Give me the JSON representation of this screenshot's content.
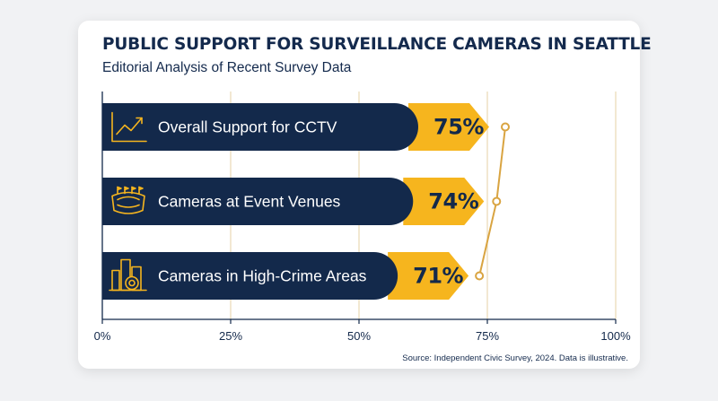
{
  "title": "PUBLIC SUPPORT FOR SURVEILLANCE CAMERAS IN SEATTLE",
  "subtitle": "Editorial Analysis of Recent Survey Data",
  "source": "Source: Independent Civic Survey, 2024. Data is illustrative.",
  "colors": {
    "bar": "#13294b",
    "accent": "#f6b51e",
    "trend_line": "#d9a441",
    "grid": "#ead9b4",
    "text_light": "#ffffff",
    "text_dark": "#13294b"
  },
  "chart_data": {
    "type": "bar",
    "orientation": "horizontal",
    "categories": [
      "Overall Support for CCTV",
      "Cameras at Event Venues",
      "Cameras in High-Crime Areas"
    ],
    "icons": [
      "trend-chart-icon",
      "stadium-icon",
      "city-camera-icon"
    ],
    "values": [
      75,
      74,
      71
    ],
    "value_labels": [
      "75%",
      "74%",
      "71%"
    ],
    "xlim": [
      0,
      100
    ],
    "xticks": [
      0,
      25,
      50,
      75,
      100
    ],
    "xtick_labels": [
      "0%",
      "25%",
      "50%",
      "75%",
      "100%"
    ],
    "grid": true
  }
}
